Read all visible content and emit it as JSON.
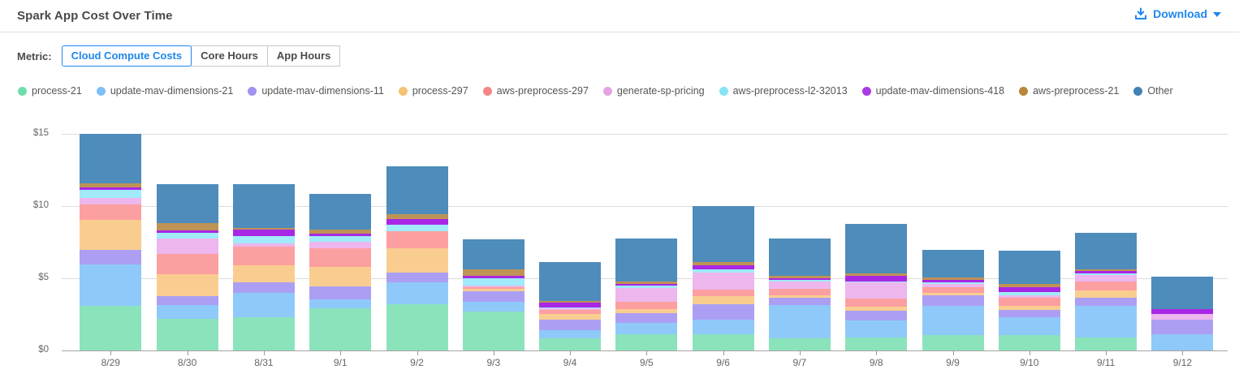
{
  "header": {
    "title": "Spark App Cost Over Time",
    "download_label": "Download"
  },
  "metric": {
    "label": "Metric:",
    "options": [
      {
        "label": "Cloud Compute Costs",
        "selected": true
      },
      {
        "label": "Core Hours",
        "selected": false
      },
      {
        "label": "App Hours",
        "selected": false
      }
    ]
  },
  "colors": {
    "accent_blue": "#1f87ec",
    "axis_text": "#666666",
    "gridline": "#dcdcdc"
  },
  "chart_data": {
    "type": "bar",
    "stacked": true,
    "title": "Spark App Cost Over Time",
    "xlabel": "",
    "ylabel": "Cloud Compute Costs ($)",
    "ylim": [
      0,
      15
    ],
    "grid": true,
    "legend_position": "top",
    "y_ticks": [
      {
        "value": 0,
        "label": "$0"
      },
      {
        "value": 5,
        "label": "$5"
      },
      {
        "value": 10,
        "label": "$10"
      },
      {
        "value": 15,
        "label": "$15"
      }
    ],
    "categories": [
      "8/29",
      "8/30",
      "8/31",
      "9/1",
      "9/2",
      "9/3",
      "9/4",
      "9/5",
      "9/6",
      "9/7",
      "9/8",
      "9/9",
      "9/10",
      "9/11",
      "9/12"
    ],
    "series": [
      {
        "name": "process-21",
        "color": "#8be3bb",
        "dot_color": "#6fdcac",
        "values": [
          3.1,
          2.2,
          2.3,
          2.9,
          3.2,
          2.7,
          0.85,
          1.1,
          1.1,
          0.85,
          0.9,
          1.05,
          1.05,
          0.9,
          0
        ]
      },
      {
        "name": "update-mav-dimensions-21",
        "color": "#8ec9fa",
        "dot_color": "#7fbff7",
        "values": [
          2.85,
          0.95,
          1.7,
          0.65,
          1.5,
          0.65,
          0.55,
          0.8,
          1.05,
          2.3,
          1.2,
          2.05,
          1.25,
          2.2,
          1.15
        ]
      },
      {
        "name": "update-mav-dimensions-11",
        "color": "#ac9ff3",
        "dot_color": "#a193ef",
        "values": [
          1.0,
          0.6,
          0.7,
          0.9,
          0.7,
          0.75,
          0.75,
          0.7,
          1.05,
          0.5,
          0.65,
          0.7,
          0.5,
          0.55,
          1.0
        ]
      },
      {
        "name": "process-297",
        "color": "#f9cd90",
        "dot_color": "#f4c175",
        "values": [
          2.1,
          1.55,
          1.2,
          1.35,
          1.7,
          0.2,
          0.4,
          0.25,
          0.55,
          0.2,
          0.3,
          0.2,
          0.3,
          0.5,
          0
        ]
      },
      {
        "name": "aws-preprocess-297",
        "color": "#fc9fa0",
        "dot_color": "#f68585",
        "values": [
          1.05,
          1.4,
          1.3,
          1.3,
          1.15,
          0.1,
          0.25,
          0.55,
          0.45,
          0.4,
          0.55,
          0.4,
          0.55,
          0.6,
          0
        ]
      },
      {
        "name": "generate-sp-pricing",
        "color": "#edb6ed",
        "dot_color": "#e3a3e2",
        "values": [
          0.45,
          1.05,
          0.2,
          0.45,
          0,
          0.1,
          0.1,
          0.95,
          1.2,
          0.55,
          1.1,
          0.2,
          0.2,
          0.45,
          0.4
        ]
      },
      {
        "name": "aws-preprocess-l2-32013",
        "color": "#a0eaf9",
        "dot_color": "#86e3f4",
        "values": [
          0.55,
          0.4,
          0.5,
          0.4,
          0.45,
          0.5,
          0.1,
          0.15,
          0.2,
          0.1,
          0.1,
          0.15,
          0.2,
          0.15,
          0
        ]
      },
      {
        "name": "update-mav-dimensions-418",
        "color": "#a827e5",
        "dot_color": "#a83be3",
        "values": [
          0.2,
          0.15,
          0.45,
          0.15,
          0.4,
          0.15,
          0.3,
          0.1,
          0.3,
          0.1,
          0.35,
          0.15,
          0.35,
          0.15,
          0.3
        ]
      },
      {
        "name": "aws-preprocess-21",
        "color": "#be9355",
        "dot_color": "#b8873c",
        "values": [
          0.3,
          0.55,
          0.15,
          0.3,
          0.35,
          0.45,
          0.15,
          0.2,
          0.2,
          0.15,
          0.2,
          0.15,
          0.2,
          0.15,
          0
        ]
      },
      {
        "name": "Other",
        "color": "#4e8cbb",
        "dot_color": "#4181b3",
        "values": [
          3.4,
          2.65,
          3.0,
          2.45,
          3.3,
          2.1,
          2.7,
          2.95,
          3.9,
          2.6,
          3.4,
          1.95,
          2.3,
          2.5,
          2.25
        ]
      }
    ]
  }
}
